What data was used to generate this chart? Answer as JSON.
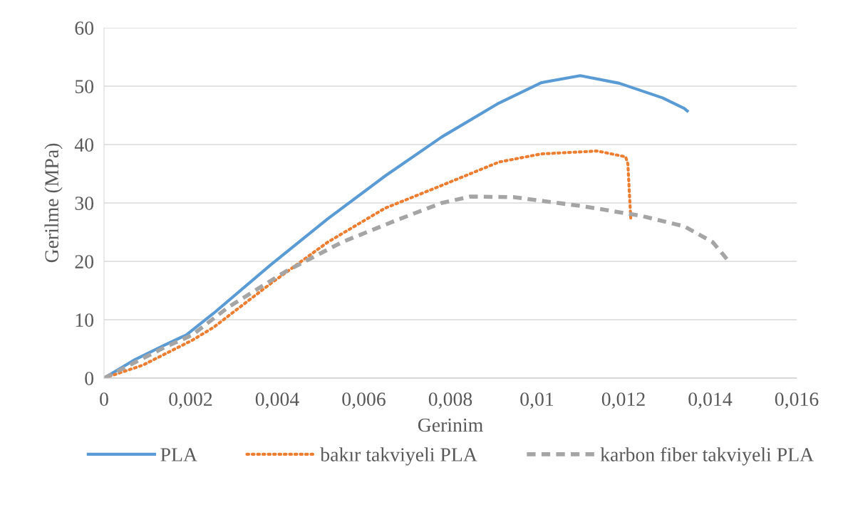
{
  "chart_data": {
    "type": "line",
    "xlabel": "Gerinim",
    "ylabel": "Gerilme (MPa)",
    "xlim": [
      0,
      0.016
    ],
    "ylim": [
      0,
      60
    ],
    "xticks": [
      {
        "value": 0,
        "label": "0"
      },
      {
        "value": 0.002,
        "label": "0,002"
      },
      {
        "value": 0.004,
        "label": "0,004"
      },
      {
        "value": 0.006,
        "label": "0,006"
      },
      {
        "value": 0.008,
        "label": "0,008"
      },
      {
        "value": 0.01,
        "label": "0,01"
      },
      {
        "value": 0.012,
        "label": "0,012"
      },
      {
        "value": 0.014,
        "label": "0,014"
      },
      {
        "value": 0.016,
        "label": "0,016"
      }
    ],
    "yticks": [
      0,
      10,
      20,
      30,
      40,
      50,
      60
    ],
    "grid": "y",
    "legend": "bottom",
    "marker": "none",
    "series": [
      {
        "name": "PLA",
        "color": "#5b9bd5",
        "line_style": "solid",
        "x": [
          0,
          0.00072,
          0.00138,
          0.0019,
          0.00253,
          0.00385,
          0.00517,
          0.00649,
          0.0078,
          0.00912,
          0.0101,
          0.011,
          0.0119,
          0.0129,
          0.0134,
          0.0135
        ],
        "values": [
          0,
          3.2,
          5.6,
          7.4,
          11.1,
          19.4,
          27.3,
          34.6,
          41.3,
          47.1,
          50.6,
          51.8,
          50.5,
          48,
          46.2,
          45.6
        ]
      },
      {
        "name": "bakır takviyeli PLA",
        "color": "#ed7d31",
        "line_style": "dotted",
        "x": [
          0,
          0.00089,
          0.00204,
          0.00253,
          0.00385,
          0.00517,
          0.00649,
          0.0078,
          0.00912,
          0.0101,
          0.0114,
          0.01205,
          0.0121,
          0.01217
        ],
        "values": [
          0,
          2.2,
          6.5,
          8.7,
          16.2,
          23.3,
          29.1,
          33,
          37,
          38.4,
          38.9,
          37.9,
          36.7,
          27
        ]
      },
      {
        "name": "karbon fiber takviyeli PLA",
        "color": "#a5a5a5",
        "line_style": "dashed",
        "x": [
          0,
          0.00138,
          0.00204,
          0.00286,
          0.00418,
          0.0055,
          0.00681,
          0.0078,
          0.00846,
          0.00945,
          0.0111,
          0.0124,
          0.0134,
          0.01406,
          0.01442
        ],
        "values": [
          0,
          5.2,
          7.4,
          12.1,
          18.2,
          23.3,
          27.2,
          30,
          31.1,
          31,
          29.4,
          27.8,
          26,
          23.3,
          20.1
        ]
      }
    ]
  }
}
